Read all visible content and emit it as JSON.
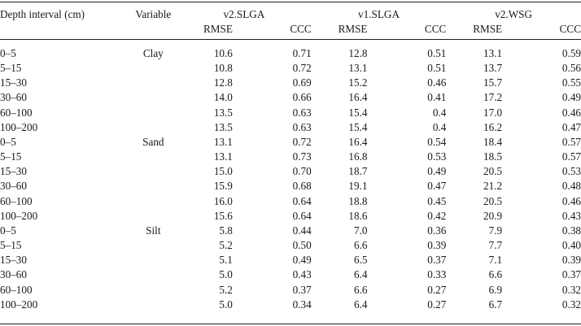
{
  "header": {
    "depth_label": "Depth interval (cm)",
    "variable_label": "Variable",
    "groups": [
      "v2.SLGA",
      "v1.SLGA",
      "v2.WSG"
    ],
    "metrics": [
      "RMSE",
      "CCC"
    ]
  },
  "rows": [
    {
      "depth": "0–5",
      "variable": "Clay",
      "v2_rmse": "10.6",
      "v2_ccc": "0.71",
      "v1_rmse": "12.8",
      "v1_ccc": "0.51",
      "wsg_rmse": "13.1",
      "wsg_ccc": "0.59"
    },
    {
      "depth": "5–15",
      "variable": "",
      "v2_rmse": "10.8",
      "v2_ccc": "0.72",
      "v1_rmse": "13.1",
      "v1_ccc": "0.51",
      "wsg_rmse": "13.7",
      "wsg_ccc": "0.56"
    },
    {
      "depth": "15–30",
      "variable": "",
      "v2_rmse": "12.8",
      "v2_ccc": "0.69",
      "v1_rmse": "15.2",
      "v1_ccc": "0.46",
      "wsg_rmse": "15.7",
      "wsg_ccc": "0.55"
    },
    {
      "depth": "30–60",
      "variable": "",
      "v2_rmse": "14.0",
      "v2_ccc": "0.66",
      "v1_rmse": "16.4",
      "v1_ccc": "0.41",
      "wsg_rmse": "17.2",
      "wsg_ccc": "0.49"
    },
    {
      "depth": "60–100",
      "variable": "",
      "v2_rmse": "13.5",
      "v2_ccc": "0.63",
      "v1_rmse": "15.4",
      "v1_ccc": "0.4",
      "wsg_rmse": "17.0",
      "wsg_ccc": "0.46"
    },
    {
      "depth": "100–200",
      "variable": "",
      "v2_rmse": "13.5",
      "v2_ccc": "0.63",
      "v1_rmse": "15.4",
      "v1_ccc": "0.4",
      "wsg_rmse": "16.2",
      "wsg_ccc": "0.47"
    },
    {
      "depth": "0–5",
      "variable": "Sand",
      "v2_rmse": "13.1",
      "v2_ccc": "0.72",
      "v1_rmse": "16.4",
      "v1_ccc": "0.54",
      "wsg_rmse": "18.4",
      "wsg_ccc": "0.57"
    },
    {
      "depth": "5–15",
      "variable": "",
      "v2_rmse": "13.1",
      "v2_ccc": "0.73",
      "v1_rmse": "16.8",
      "v1_ccc": "0.53",
      "wsg_rmse": "18.5",
      "wsg_ccc": "0.57"
    },
    {
      "depth": "15–30",
      "variable": "",
      "v2_rmse": "15.0",
      "v2_ccc": "0.70",
      "v1_rmse": "18.7",
      "v1_ccc": "0.49",
      "wsg_rmse": "20.5",
      "wsg_ccc": "0.53"
    },
    {
      "depth": "30–60",
      "variable": "",
      "v2_rmse": "15.9",
      "v2_ccc": "0.68",
      "v1_rmse": "19.1",
      "v1_ccc": "0.47",
      "wsg_rmse": "21.2",
      "wsg_ccc": "0.48"
    },
    {
      "depth": "60–100",
      "variable": "",
      "v2_rmse": "16.0",
      "v2_ccc": "0.64",
      "v1_rmse": "18.8",
      "v1_ccc": "0.45",
      "wsg_rmse": "20.5",
      "wsg_ccc": "0.46"
    },
    {
      "depth": "100–200",
      "variable": "",
      "v2_rmse": "15.6",
      "v2_ccc": "0.64",
      "v1_rmse": "18.6",
      "v1_ccc": "0.42",
      "wsg_rmse": "20.9",
      "wsg_ccc": "0.43"
    },
    {
      "depth": "0–5",
      "variable": "Silt",
      "v2_rmse": "5.8",
      "v2_ccc": "0.44",
      "v1_rmse": "7.0",
      "v1_ccc": "0.36",
      "wsg_rmse": "7.9",
      "wsg_ccc": "0.38"
    },
    {
      "depth": "5–15",
      "variable": "",
      "v2_rmse": "5.2",
      "v2_ccc": "0.50",
      "v1_rmse": "6.6",
      "v1_ccc": "0.39",
      "wsg_rmse": "7.7",
      "wsg_ccc": "0.40"
    },
    {
      "depth": "15–30",
      "variable": "",
      "v2_rmse": "5.1",
      "v2_ccc": "0.49",
      "v1_rmse": "6.5",
      "v1_ccc": "0.37",
      "wsg_rmse": "7.1",
      "wsg_ccc": "0.39"
    },
    {
      "depth": "30–60",
      "variable": "",
      "v2_rmse": "5.0",
      "v2_ccc": "0.43",
      "v1_rmse": "6.4",
      "v1_ccc": "0.33",
      "wsg_rmse": "6.6",
      "wsg_ccc": "0.37"
    },
    {
      "depth": "60–100",
      "variable": "",
      "v2_rmse": "5.2",
      "v2_ccc": "0.37",
      "v1_rmse": "6.6",
      "v1_ccc": "0.27",
      "wsg_rmse": "6.9",
      "wsg_ccc": "0.32"
    },
    {
      "depth": "100–200",
      "variable": "",
      "v2_rmse": "5.0",
      "v2_ccc": "0.34",
      "v1_rmse": "6.4",
      "v1_ccc": "0.27",
      "wsg_rmse": "6.7",
      "wsg_ccc": "0.32"
    }
  ]
}
